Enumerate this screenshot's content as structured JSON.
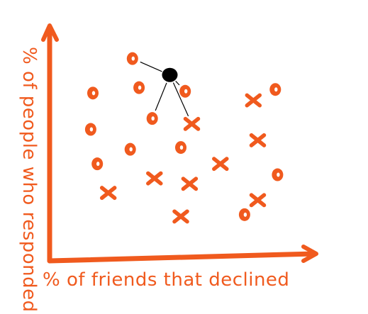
{
  "chart_data": {
    "type": "scatter",
    "title": "",
    "xlabel": "% of friends that declined",
    "ylabel": "% of people who responded",
    "xlim": [
      0,
      100
    ],
    "ylim": [
      0,
      100
    ],
    "grid": false,
    "colors": {
      "axis": "#f05a1e",
      "point": "#f05a1e",
      "highlight": "#000000"
    },
    "circles": [
      {
        "x": 28,
        "y": 97
      },
      {
        "x": 10,
        "y": 78
      },
      {
        "x": 31,
        "y": 81
      },
      {
        "x": 52,
        "y": 79
      },
      {
        "x": 93,
        "y": 80
      },
      {
        "x": 37,
        "y": 64
      },
      {
        "x": 9,
        "y": 58
      },
      {
        "x": 27,
        "y": 47
      },
      {
        "x": 50,
        "y": 48
      },
      {
        "x": 12,
        "y": 39
      },
      {
        "x": 94,
        "y": 33
      },
      {
        "x": 79,
        "y": 11
      }
    ],
    "crosses": [
      {
        "x": 83,
        "y": 74
      },
      {
        "x": 55,
        "y": 61
      },
      {
        "x": 85,
        "y": 52
      },
      {
        "x": 68,
        "y": 39
      },
      {
        "x": 38,
        "y": 31
      },
      {
        "x": 54,
        "y": 28
      },
      {
        "x": 17,
        "y": 23
      },
      {
        "x": 85,
        "y": 19
      },
      {
        "x": 50,
        "y": 10
      }
    ],
    "highlight": {
      "x": 45,
      "y": 88,
      "links": [
        0,
        3,
        5,
        1
      ]
    }
  }
}
